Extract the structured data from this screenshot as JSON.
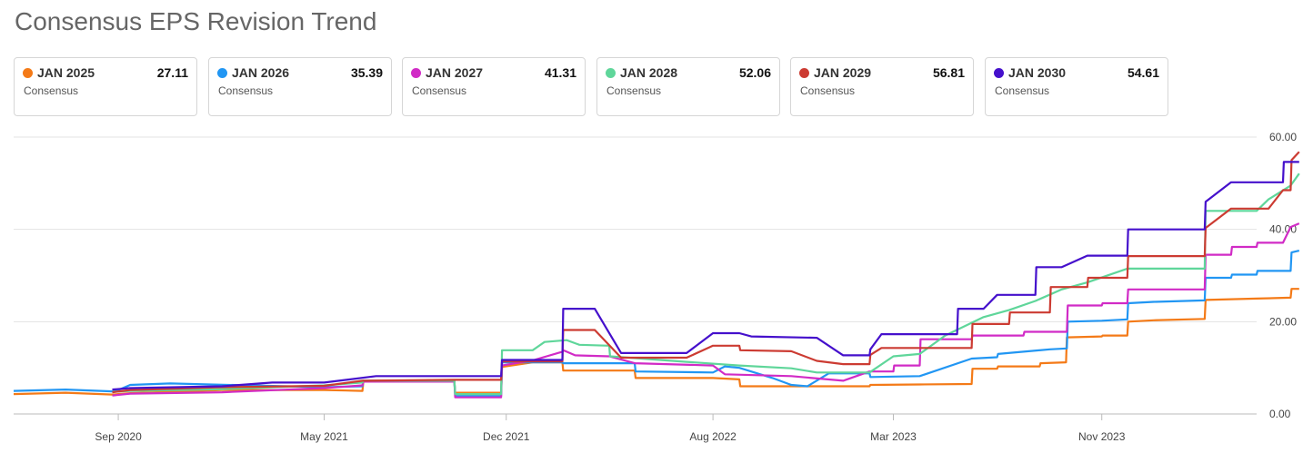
{
  "header": {
    "title": "Consensus EPS Revision Trend"
  },
  "cards": [
    {
      "label": "JAN 2025",
      "value": "27.11",
      "sub": "Consensus",
      "color": "#f47a17"
    },
    {
      "label": "JAN 2026",
      "value": "35.39",
      "sub": "Consensus",
      "color": "#2196f3"
    },
    {
      "label": "JAN 2027",
      "value": "41.31",
      "sub": "Consensus",
      "color": "#d12bc6"
    },
    {
      "label": "JAN 2028",
      "value": "52.06",
      "sub": "Consensus",
      "color": "#5fd69a"
    },
    {
      "label": "JAN 2029",
      "value": "56.81",
      "sub": "Consensus",
      "color": "#cc3b32"
    },
    {
      "label": "JAN 2030",
      "value": "54.61",
      "sub": "Consensus",
      "color": "#4510cc"
    }
  ],
  "chart_data": {
    "type": "line",
    "title": "Consensus EPS Revision Trend",
    "xlabel": "",
    "ylabel": "",
    "x_range": [
      "2020-05-01",
      "2024-05-01"
    ],
    "ylim": [
      0,
      60
    ],
    "y_ticks": [
      "0.00",
      "20.00",
      "40.00",
      "60.00"
    ],
    "x_ticks": [
      {
        "date": "2020-09-01",
        "label": "Sep 2020"
      },
      {
        "date": "2021-05-01",
        "label": "May 2021"
      },
      {
        "date": "2021-12-01",
        "label": "Dec 2021"
      },
      {
        "date": "2022-08-01",
        "label": "Aug 2022"
      },
      {
        "date": "2023-03-01",
        "label": "Mar 2023"
      },
      {
        "date": "2023-11-01",
        "label": "Nov 2023"
      }
    ],
    "grid": true,
    "series": [
      {
        "name": "JAN 2025",
        "color": "#f47a17",
        "points": [
          [
            "2020-05-01",
            4.3
          ],
          [
            "2020-07-01",
            4.6
          ],
          [
            "2020-08-25",
            4.2
          ],
          [
            "2020-08-26",
            4.2
          ],
          [
            "2020-09-15",
            4.5
          ],
          [
            "2021-01-01",
            5.2
          ],
          [
            "2021-05-01",
            5.2
          ],
          [
            "2021-06-15",
            5.0
          ],
          [
            "2021-06-16",
            7.0
          ],
          [
            "2021-10-01",
            7.0
          ],
          [
            "2021-10-02",
            4.6
          ],
          [
            "2021-11-25",
            4.6
          ],
          [
            "2021-11-26",
            10.2
          ],
          [
            "2022-01-01",
            11.2
          ],
          [
            "2022-02-05",
            11.2
          ],
          [
            "2022-02-06",
            9.4
          ],
          [
            "2022-05-01",
            9.4
          ],
          [
            "2022-05-02",
            7.8
          ],
          [
            "2022-08-01",
            7.8
          ],
          [
            "2022-09-01",
            7.5
          ],
          [
            "2022-09-02",
            6.0
          ],
          [
            "2023-02-01",
            6.0
          ],
          [
            "2023-02-02",
            6.3
          ],
          [
            "2023-04-01",
            6.4
          ],
          [
            "2023-06-01",
            6.5
          ],
          [
            "2023-06-02",
            9.8
          ],
          [
            "2023-07-01",
            9.8
          ],
          [
            "2023-07-02",
            10.3
          ],
          [
            "2023-08-20",
            10.3
          ],
          [
            "2023-08-21",
            11.0
          ],
          [
            "2023-09-20",
            11.2
          ],
          [
            "2023-09-21",
            16.6
          ],
          [
            "2023-11-01",
            16.8
          ],
          [
            "2023-11-02",
            17.0
          ],
          [
            "2023-12-01",
            17.0
          ],
          [
            "2023-12-02",
            20.0
          ],
          [
            "2024-01-01",
            20.3
          ],
          [
            "2024-03-01",
            20.6
          ],
          [
            "2024-03-02",
            24.7
          ],
          [
            "2024-05-01",
            25.0
          ],
          [
            "2024-06-10",
            25.2
          ],
          [
            "2024-06-11",
            27.1
          ],
          [
            "2024-06-20",
            27.1
          ]
        ]
      },
      {
        "name": "JAN 2026",
        "color": "#2196f3",
        "points": [
          [
            "2020-05-01",
            5.0
          ],
          [
            "2020-07-01",
            5.3
          ],
          [
            "2020-08-25",
            4.9
          ],
          [
            "2020-09-01",
            5.2
          ],
          [
            "2020-09-15",
            6.3
          ],
          [
            "2020-11-01",
            6.6
          ],
          [
            "2021-05-01",
            5.8
          ],
          [
            "2021-06-15",
            6.0
          ],
          [
            "2021-06-16",
            7.2
          ],
          [
            "2021-10-01",
            7.2
          ],
          [
            "2021-10-02",
            3.9
          ],
          [
            "2021-11-25",
            3.9
          ],
          [
            "2021-11-26",
            11.2
          ],
          [
            "2022-02-05",
            11.2
          ],
          [
            "2022-02-06",
            11.0
          ],
          [
            "2022-05-01",
            11.0
          ],
          [
            "2022-05-02",
            9.2
          ],
          [
            "2022-08-01",
            9.0
          ],
          [
            "2022-08-15",
            10.3
          ],
          [
            "2022-09-01",
            10.0
          ],
          [
            "2022-10-10",
            7.8
          ],
          [
            "2022-11-01",
            6.3
          ],
          [
            "2022-11-20",
            6.0
          ],
          [
            "2022-12-15",
            8.8
          ],
          [
            "2023-02-01",
            8.8
          ],
          [
            "2023-02-02",
            8.0
          ],
          [
            "2023-04-01",
            8.2
          ],
          [
            "2023-06-01",
            12.0
          ],
          [
            "2023-07-01",
            12.3
          ],
          [
            "2023-07-02",
            13.0
          ],
          [
            "2023-09-01",
            14.0
          ],
          [
            "2023-09-21",
            14.2
          ],
          [
            "2023-09-22",
            20.0
          ],
          [
            "2023-11-01",
            20.2
          ],
          [
            "2023-12-01",
            20.5
          ],
          [
            "2023-12-02",
            24.0
          ],
          [
            "2024-01-01",
            24.3
          ],
          [
            "2024-03-01",
            24.6
          ],
          [
            "2024-03-02",
            29.5
          ],
          [
            "2024-04-01",
            29.5
          ],
          [
            "2024-04-02",
            30.2
          ],
          [
            "2024-05-01",
            30.2
          ],
          [
            "2024-05-02",
            31.0
          ],
          [
            "2024-06-10",
            31.0
          ],
          [
            "2024-06-11",
            35.0
          ],
          [
            "2024-06-20",
            35.4
          ]
        ]
      },
      {
        "name": "JAN 2027",
        "color": "#d12bc6",
        "points": [
          [
            "2020-08-25",
            4.0
          ],
          [
            "2020-09-15",
            4.4
          ],
          [
            "2021-01-01",
            4.7
          ],
          [
            "2021-05-01",
            5.6
          ],
          [
            "2021-06-15",
            6.2
          ],
          [
            "2021-06-16",
            7.0
          ],
          [
            "2021-10-01",
            7.0
          ],
          [
            "2021-10-02",
            3.6
          ],
          [
            "2021-11-25",
            3.6
          ],
          [
            "2021-11-26",
            10.5
          ],
          [
            "2022-01-01",
            11.6
          ],
          [
            "2022-02-05",
            13.5
          ],
          [
            "2022-02-06",
            13.8
          ],
          [
            "2022-02-20",
            12.7
          ],
          [
            "2022-04-01",
            12.5
          ],
          [
            "2022-05-01",
            11.0
          ],
          [
            "2022-08-01",
            10.5
          ],
          [
            "2022-08-15",
            8.6
          ],
          [
            "2022-11-01",
            8.2
          ],
          [
            "2023-01-01",
            7.2
          ],
          [
            "2023-02-01",
            9.2
          ],
          [
            "2023-03-01",
            9.2
          ],
          [
            "2023-03-02",
            10.5
          ],
          [
            "2023-04-01",
            10.5
          ],
          [
            "2023-04-02",
            16.2
          ],
          [
            "2023-06-01",
            16.2
          ],
          [
            "2023-06-02",
            17.0
          ],
          [
            "2023-08-01",
            17.0
          ],
          [
            "2023-08-02",
            17.8
          ],
          [
            "2023-09-21",
            17.8
          ],
          [
            "2023-09-22",
            23.5
          ],
          [
            "2023-11-01",
            23.5
          ],
          [
            "2023-11-02",
            24.0
          ],
          [
            "2023-12-01",
            24.0
          ],
          [
            "2023-12-02",
            27.0
          ],
          [
            "2024-03-01",
            27.0
          ],
          [
            "2024-03-02",
            34.5
          ],
          [
            "2024-04-01",
            34.5
          ],
          [
            "2024-04-02",
            36.2
          ],
          [
            "2024-05-01",
            36.2
          ],
          [
            "2024-05-02",
            37.1
          ],
          [
            "2024-06-01",
            37.1
          ],
          [
            "2024-06-10",
            40.5
          ],
          [
            "2024-06-20",
            41.3
          ]
        ]
      },
      {
        "name": "JAN 2028",
        "color": "#5fd69a",
        "points": [
          [
            "2020-08-25",
            4.8
          ],
          [
            "2020-09-15",
            5.0
          ],
          [
            "2021-01-01",
            5.4
          ],
          [
            "2021-05-01",
            6.2
          ],
          [
            "2021-06-15",
            6.8
          ],
          [
            "2021-06-16",
            7.2
          ],
          [
            "2021-10-01",
            7.2
          ],
          [
            "2021-10-02",
            4.3
          ],
          [
            "2021-11-25",
            4.3
          ],
          [
            "2021-11-26",
            13.8
          ],
          [
            "2022-01-01",
            13.8
          ],
          [
            "2022-01-15",
            15.6
          ],
          [
            "2022-02-10",
            16.0
          ],
          [
            "2022-02-25",
            15.0
          ],
          [
            "2022-04-01",
            14.8
          ],
          [
            "2022-04-02",
            12.5
          ],
          [
            "2022-07-01",
            11.3
          ],
          [
            "2022-09-01",
            10.5
          ],
          [
            "2022-11-01",
            9.9
          ],
          [
            "2022-12-01",
            9.0
          ],
          [
            "2023-02-01",
            9.0
          ],
          [
            "2023-03-01",
            12.5
          ],
          [
            "2023-04-01",
            13.0
          ],
          [
            "2023-05-01",
            17.0
          ],
          [
            "2023-06-15",
            21.0
          ],
          [
            "2023-07-15",
            22.5
          ],
          [
            "2023-08-15",
            24.5
          ],
          [
            "2023-09-15",
            27.0
          ],
          [
            "2023-10-15",
            28.5
          ],
          [
            "2023-12-01",
            31.5
          ],
          [
            "2024-03-01",
            31.5
          ],
          [
            "2024-03-02",
            44.0
          ],
          [
            "2024-05-01",
            44.0
          ],
          [
            "2024-05-15",
            46.5
          ],
          [
            "2024-06-10",
            49.5
          ],
          [
            "2024-06-20",
            52.1
          ]
        ]
      },
      {
        "name": "JAN 2029",
        "color": "#cc3b32",
        "points": [
          [
            "2020-08-25",
            4.7
          ],
          [
            "2020-09-15",
            5.2
          ],
          [
            "2021-01-01",
            5.8
          ],
          [
            "2021-05-01",
            6.1
          ],
          [
            "2021-06-15",
            7.2
          ],
          [
            "2021-10-01",
            7.4
          ],
          [
            "2021-11-25",
            7.4
          ],
          [
            "2021-11-26",
            11.4
          ],
          [
            "2022-02-05",
            11.4
          ],
          [
            "2022-02-06",
            18.2
          ],
          [
            "2022-03-15",
            18.2
          ],
          [
            "2022-04-15",
            12.2
          ],
          [
            "2022-07-01",
            12.2
          ],
          [
            "2022-08-01",
            14.8
          ],
          [
            "2022-09-01",
            14.8
          ],
          [
            "2022-09-02",
            13.8
          ],
          [
            "2022-11-01",
            13.6
          ],
          [
            "2022-12-01",
            11.5
          ],
          [
            "2023-01-01",
            10.8
          ],
          [
            "2023-02-01",
            10.8
          ],
          [
            "2023-02-02",
            12.8
          ],
          [
            "2023-02-15",
            14.3
          ],
          [
            "2023-06-01",
            14.3
          ],
          [
            "2023-06-02",
            19.5
          ],
          [
            "2023-07-15",
            19.5
          ],
          [
            "2023-07-16",
            22.0
          ],
          [
            "2023-09-01",
            22.0
          ],
          [
            "2023-09-02",
            27.5
          ],
          [
            "2023-10-15",
            27.5
          ],
          [
            "2023-10-16",
            29.5
          ],
          [
            "2023-12-01",
            29.5
          ],
          [
            "2023-12-02",
            34.2
          ],
          [
            "2024-03-01",
            34.2
          ],
          [
            "2024-03-02",
            40.3
          ],
          [
            "2024-04-01",
            44.5
          ],
          [
            "2024-05-01",
            44.5
          ],
          [
            "2024-05-15",
            44.5
          ],
          [
            "2024-06-01",
            48.5
          ],
          [
            "2024-06-10",
            48.5
          ],
          [
            "2024-06-11",
            55.0
          ],
          [
            "2024-06-20",
            56.8
          ]
        ]
      },
      {
        "name": "JAN 2030",
        "color": "#4510cc",
        "points": [
          [
            "2020-08-25",
            5.3
          ],
          [
            "2020-09-15",
            5.6
          ],
          [
            "2021-01-01",
            6.0
          ],
          [
            "2021-03-01",
            6.8
          ],
          [
            "2021-05-01",
            6.8
          ],
          [
            "2021-07-01",
            8.2
          ],
          [
            "2021-11-25",
            8.2
          ],
          [
            "2021-11-26",
            11.7
          ],
          [
            "2022-02-05",
            11.7
          ],
          [
            "2022-02-06",
            22.8
          ],
          [
            "2022-03-15",
            22.8
          ],
          [
            "2022-04-15",
            13.2
          ],
          [
            "2022-07-01",
            13.2
          ],
          [
            "2022-08-01",
            17.5
          ],
          [
            "2022-09-01",
            17.5
          ],
          [
            "2022-09-15",
            16.8
          ],
          [
            "2022-12-01",
            16.5
          ],
          [
            "2023-01-01",
            12.7
          ],
          [
            "2023-02-01",
            12.7
          ],
          [
            "2023-02-02",
            14.0
          ],
          [
            "2023-02-15",
            17.3
          ],
          [
            "2023-05-15",
            17.3
          ],
          [
            "2023-05-16",
            22.8
          ],
          [
            "2023-06-15",
            22.8
          ],
          [
            "2023-07-01",
            25.8
          ],
          [
            "2023-08-15",
            25.8
          ],
          [
            "2023-08-16",
            31.8
          ],
          [
            "2023-09-15",
            31.8
          ],
          [
            "2023-10-15",
            34.3
          ],
          [
            "2023-12-01",
            34.3
          ],
          [
            "2023-12-02",
            40.0
          ],
          [
            "2024-03-01",
            40.0
          ],
          [
            "2024-03-02",
            46.0
          ],
          [
            "2024-04-01",
            50.2
          ],
          [
            "2024-06-01",
            50.2
          ],
          [
            "2024-06-02",
            54.6
          ],
          [
            "2024-06-20",
            54.6
          ]
        ]
      }
    ]
  }
}
